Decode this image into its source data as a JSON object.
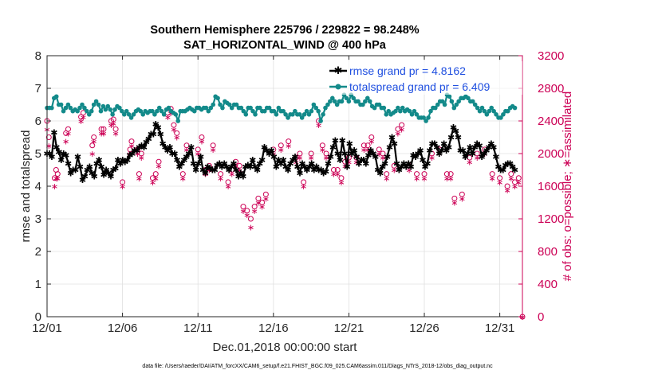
{
  "chart_data": {
    "type": "line",
    "title_line1": "Southern Hemisphere 225796 / 229822 = 98.248%",
    "title_line2": "SAT_HORIZONTAL_WIND @ 400 hPa",
    "xlabel": "Dec.01,2018 00:00:00 start",
    "ylabel_left": "rmse and totalspread",
    "ylabel_right": "# of obs: o=possible; ∗=assimilated",
    "footer": "data file: /Users/raeder/DAI/ATM_forcXX/CAM6_setup/f.e21.FHIST_BGC.f09_025.CAM6assim.011/Diags_NTrS_2018-12/obs_diag_output.nc",
    "xlim": [
      0,
      31.5
    ],
    "ylim_left": [
      0,
      8
    ],
    "ylim_right": [
      0,
      3200
    ],
    "x_ticks": [
      0,
      5,
      10,
      15,
      20,
      25,
      30
    ],
    "x_tick_labels": [
      "12/01",
      "12/06",
      "12/11",
      "12/16",
      "12/21",
      "12/26",
      "12/31"
    ],
    "y_left_ticks": [
      0,
      1,
      2,
      3,
      4,
      5,
      6,
      7,
      8
    ],
    "y_left_tick_labels": [
      "0",
      "1",
      "2",
      "3",
      "4",
      "5",
      "6",
      "7",
      "8"
    ],
    "y_right_ticks": [
      0,
      400,
      800,
      1200,
      1600,
      2000,
      2400,
      2800,
      3200
    ],
    "y_right_tick_labels": [
      "0",
      "400",
      "800",
      "1200",
      "1600",
      "2000",
      "2400",
      "2800",
      "3200"
    ],
    "colors": {
      "rmse": "#000000",
      "spread": "#138a8a",
      "obs": "#cc0055",
      "legend_text": "#1f4fe0",
      "axis": "#262626",
      "grid": "#e0e0e0"
    },
    "legend": {
      "placement": "top-right",
      "entries": [
        {
          "series": "rmse",
          "label": "rmse grand pr = 4.8162"
        },
        {
          "series": "spread",
          "label": "totalspread grand pr = 6.409"
        }
      ]
    },
    "series": [
      {
        "name": "rmse",
        "axis": "left",
        "marker": "star",
        "values": [
          5.0,
          5.0,
          4.9,
          5.65,
          5.2,
          5.05,
          4.8,
          5.0,
          4.95,
          4.7,
          4.4,
          4.5,
          4.5,
          4.9,
          4.6,
          4.2,
          4.3,
          4.5,
          4.6,
          4.4,
          4.3,
          4.7,
          4.8,
          4.6,
          4.35,
          4.5,
          4.4,
          4.3,
          4.5,
          4.55,
          4.8,
          4.7,
          4.8,
          4.75,
          4.8,
          4.95,
          5.0,
          5.1,
          5.1,
          5.2,
          5.25,
          5.2,
          5.35,
          5.45,
          5.6,
          5.6,
          5.9,
          5.8,
          5.6,
          5.3,
          5.2,
          5.1,
          5.2,
          5.0,
          5.0,
          4.8,
          4.6,
          4.7,
          4.8,
          4.9,
          5.0,
          5.2,
          4.7,
          4.5,
          4.7,
          4.9,
          4.5,
          4.4,
          4.6,
          4.55,
          4.5,
          4.5,
          4.65,
          4.7,
          4.6,
          4.7,
          4.6,
          4.5,
          4.6,
          4.7,
          4.5,
          4.3,
          4.4,
          4.3,
          4.6,
          4.65,
          4.6,
          4.8,
          4.6,
          4.5,
          4.7,
          4.8,
          5.2,
          5.1,
          5.0,
          5.1,
          4.9,
          4.6,
          4.8,
          4.7,
          4.8,
          4.6,
          4.5,
          4.7,
          4.8,
          4.9,
          4.6,
          4.4,
          4.7,
          4.6,
          4.5,
          4.6,
          4.7,
          4.5,
          4.6,
          4.5,
          4.5,
          4.4,
          4.45,
          4.7,
          4.9,
          5.2,
          5.4,
          5.0,
          4.8,
          5.4,
          5.0,
          4.6,
          5.3,
          5.0,
          5.1,
          4.9,
          4.7,
          4.8,
          4.8,
          4.7,
          4.95,
          5.1,
          5.0,
          4.9,
          4.5,
          4.4,
          4.6,
          4.7,
          4.9,
          5.2,
          5.5,
          5.3,
          4.7,
          4.5,
          4.6,
          4.7,
          4.6,
          4.7,
          4.6,
          4.95,
          4.9,
          5.0,
          5.1,
          4.8,
          4.6,
          4.7,
          5.1,
          5.3,
          5.3,
          5.2,
          5.0,
          5.1,
          5.3,
          5.1,
          5.2,
          5.5,
          5.8,
          5.7,
          5.5,
          5.1,
          5.1,
          4.9,
          5.0,
          5.2,
          5.0,
          5.2,
          5.3,
          5.25,
          4.9,
          5.0,
          5.1,
          5.2,
          5.3,
          5.2,
          4.9,
          4.6,
          4.5,
          4.5,
          4.65,
          4.7,
          4.7,
          4.6,
          4.5
        ]
      },
      {
        "name": "totalspread",
        "axis": "left",
        "marker": "circle-filled",
        "values": [
          6.4,
          6.4,
          6.4,
          6.7,
          6.75,
          6.5,
          6.5,
          6.3,
          6.4,
          6.5,
          6.4,
          6.3,
          6.35,
          6.3,
          6.4,
          6.5,
          6.4,
          6.3,
          6.2,
          6.3,
          6.5,
          6.6,
          6.5,
          6.3,
          6.45,
          6.35,
          6.45,
          6.35,
          6.2,
          6.35,
          6.45,
          6.4,
          6.3,
          6.2,
          6.3,
          6.2,
          6.1,
          6.2,
          6.3,
          6.35,
          6.3,
          6.2,
          6.3,
          6.25,
          6.3,
          6.3,
          6.2,
          6.3,
          6.4,
          6.3,
          6.2,
          6.35,
          6.4,
          6.3,
          6.25,
          6.2,
          6.0,
          6.3,
          6.3,
          6.3,
          6.35,
          6.4,
          6.35,
          6.3,
          6.4,
          6.4,
          6.35,
          6.4,
          6.4,
          6.3,
          6.4,
          6.5,
          6.75,
          6.7,
          6.5,
          6.4,
          6.6,
          6.55,
          6.5,
          6.4,
          6.5,
          6.5,
          6.4,
          6.4,
          6.3,
          6.2,
          6.4,
          6.4,
          6.3,
          6.2,
          6.4,
          6.4,
          6.3,
          6.3,
          6.4,
          6.4,
          6.3,
          6.3,
          6.2,
          6.4,
          6.3,
          6.3,
          6.2,
          6.1,
          6.2,
          6.2,
          6.3,
          6.2,
          6.2,
          6.1,
          6.2,
          6.3,
          6.2,
          6.3,
          6.5,
          6.4,
          6.3,
          6.0,
          6.2,
          6.4,
          6.5,
          6.6,
          6.7,
          6.6,
          6.5,
          6.6,
          6.6,
          6.8,
          6.7,
          6.6,
          6.8,
          6.7,
          6.6,
          6.6,
          6.5,
          6.5,
          6.6,
          6.7,
          6.6,
          6.45,
          6.4,
          6.5,
          6.5,
          6.4,
          6.4,
          6.2,
          6.3,
          6.2,
          6.25,
          6.3,
          6.4,
          6.3,
          6.4,
          6.3,
          6.35,
          6.3,
          6.2,
          6.3,
          6.2,
          6.1,
          6.1,
          6.1,
          6.0,
          6.1,
          6.3,
          6.4,
          6.4,
          6.5,
          6.6,
          6.6,
          6.5,
          6.8,
          6.75,
          6.6,
          6.4,
          6.5,
          6.6,
          6.7,
          6.7,
          6.75,
          6.7,
          6.6,
          6.6,
          6.5,
          6.4,
          6.3,
          6.4,
          6.3,
          6.2,
          6.3,
          6.4,
          6.3,
          6.2,
          6.1,
          6.1,
          6.2,
          6.3,
          6.3,
          6.4,
          6.45,
          6.4
        ]
      }
    ],
    "obs_count": {
      "axis": "right",
      "possible_marker": "circle-open",
      "assimilated_marker": "asterisk",
      "x": [
        0.0,
        0.12,
        0.5,
        0.6,
        0.7,
        1.25,
        1.4,
        2.25,
        2.4,
        3.0,
        3.1,
        3.6,
        3.75,
        4.25,
        4.4,
        4.55,
        5.0,
        5.5,
        5.6,
        6.0,
        6.1,
        6.25,
        7.0,
        7.2,
        7.4,
        8.0,
        8.2,
        8.4,
        8.6,
        9.0,
        9.25,
        10.0,
        10.25,
        10.5,
        10.75,
        11.0,
        11.5,
        12.0,
        12.25,
        12.5,
        12.75,
        13.0,
        13.25,
        13.5,
        13.75,
        14.0,
        14.25,
        14.5,
        15.0,
        15.5,
        16.0,
        16.5,
        16.75,
        17.0,
        17.5,
        18.0,
        18.25,
        18.5,
        19.0,
        19.25,
        19.5,
        19.75,
        20.0,
        20.5,
        21.0,
        21.25,
        21.5,
        22.0,
        22.25,
        22.5,
        23.0,
        23.25,
        23.5,
        24.0,
        24.5,
        25.0,
        25.5,
        26.0,
        26.5,
        26.75,
        27.0,
        27.5,
        28.0,
        28.5,
        29.0,
        29.5,
        30.0,
        30.5,
        30.75,
        31.0,
        31.25,
        31.5
      ],
      "possible": [
        2400,
        2200,
        1700,
        1800,
        1750,
        2250,
        2300,
        2450,
        2500,
        2100,
        2200,
        2300,
        2300,
        2400,
        2420,
        2300,
        1650,
        2050,
        2150,
        2050,
        1750,
        2000,
        1700,
        1750,
        1900,
        2500,
        2550,
        2350,
        2250,
        1750,
        2100,
        2050,
        2200,
        1800,
        1850,
        2100,
        1750,
        1650,
        1800,
        1900,
        1850,
        1350,
        1300,
        1200,
        1350,
        1450,
        1400,
        1500,
        2050,
        2100,
        2150,
        1950,
        2000,
        1650,
        2000,
        2400,
        2100,
        2000,
        1800,
        1800,
        1700,
        1900,
        1950,
        1950,
        2100,
        2100,
        2200,
        2050,
        2000,
        1750,
        1850,
        2300,
        2350,
        1850,
        1750,
        1750,
        2000,
        2050,
        1750,
        1750,
        1450,
        1500,
        1950,
        2000,
        2050,
        1750,
        1700,
        1600,
        1750,
        1650,
        1700,
        0
      ],
      "assimilated": [
        2300,
        2100,
        1600,
        1700,
        1700,
        2150,
        2250,
        2400,
        2450,
        2000,
        2150,
        2250,
        2250,
        2350,
        2370,
        2250,
        1600,
        2000,
        2100,
        2000,
        1700,
        1950,
        1650,
        1700,
        1850,
        2450,
        2500,
        2300,
        2200,
        1700,
        2050,
        2000,
        2150,
        1750,
        1800,
        2050,
        1700,
        1600,
        1750,
        1850,
        1800,
        1300,
        1250,
        1100,
        1300,
        1400,
        1350,
        1450,
        2000,
        2050,
        2100,
        1900,
        1950,
        1600,
        1950,
        2350,
        2050,
        1950,
        1750,
        1750,
        1650,
        1850,
        1900,
        1900,
        2050,
        2050,
        2150,
        2000,
        1950,
        1700,
        1800,
        2250,
        2300,
        1800,
        1700,
        1700,
        1950,
        2000,
        1700,
        1700,
        1400,
        1450,
        1900,
        1950,
        2000,
        1700,
        1650,
        1550,
        1700,
        1600,
        1650,
        0
      ]
    }
  }
}
